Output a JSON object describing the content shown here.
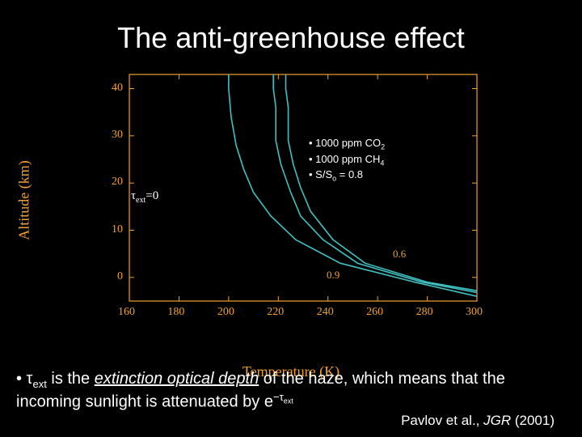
{
  "title": "The anti-greenhouse effect",
  "chart": {
    "type": "line",
    "background_color": "#000000",
    "axis_color": "#f0a030",
    "tick_color": "#f0a030",
    "curve_color": "#40c0c0",
    "xlabel": "Temperature (K)",
    "ylabel": "Altitude (km)",
    "xlim": [
      160,
      300
    ],
    "ylim": [
      -5,
      43
    ],
    "xticks": [
      160,
      180,
      200,
      220,
      240,
      260,
      280,
      300
    ],
    "yticks": [
      0,
      10,
      20,
      30,
      40
    ],
    "tau_symbol": "τ",
    "tau_sub": "ext",
    "tau_zero_text": "=0",
    "curve_tags": {
      "c06": "0.6",
      "c09": "0.9"
    },
    "legend_lines": {
      "l1_pre": "• 1000 ppm CO",
      "l1_sub": "2",
      "l2": "• 1000 ppm CH",
      "l2_sub": "4",
      "l3_pre": "• S/S",
      "l3_sub": "o",
      "l3_post": " = 0.8"
    },
    "curves": {
      "tau0": [
        [
          200,
          43
        ],
        [
          200,
          40
        ],
        [
          201,
          34
        ],
        [
          203,
          28
        ],
        [
          206,
          23
        ],
        [
          210,
          18
        ],
        [
          217,
          13
        ],
        [
          227,
          8
        ],
        [
          245,
          3
        ],
        [
          275,
          -1
        ],
        [
          300,
          -4
        ]
      ],
      "tau06": [
        [
          218,
          43
        ],
        [
          218,
          40
        ],
        [
          219,
          36
        ],
        [
          219,
          29
        ],
        [
          221,
          24
        ],
        [
          225,
          18
        ],
        [
          229,
          13
        ],
        [
          238,
          8
        ],
        [
          252,
          3
        ],
        [
          278,
          -1
        ],
        [
          300,
          -3.2
        ]
      ],
      "tau09": [
        [
          223,
          43
        ],
        [
          223,
          40
        ],
        [
          224,
          36
        ],
        [
          224,
          29
        ],
        [
          226,
          24
        ],
        [
          229,
          19
        ],
        [
          233,
          14
        ],
        [
          242,
          8
        ],
        [
          255,
          3
        ],
        [
          280,
          -1
        ],
        [
          300,
          -2.8
        ]
      ]
    }
  },
  "bullet": {
    "prefix": "• τ",
    "sub1": "ext",
    "mid1": " is the ",
    "emph": "extinction optical depth",
    "mid2": " of the haze, which means that the incoming sunlight is attenuated by e",
    "sup_pre": "−τ",
    "sup_sub": "ext"
  },
  "citation": {
    "authors": "Pavlov et al., ",
    "journal": "JGR",
    "year": " (2001)"
  }
}
